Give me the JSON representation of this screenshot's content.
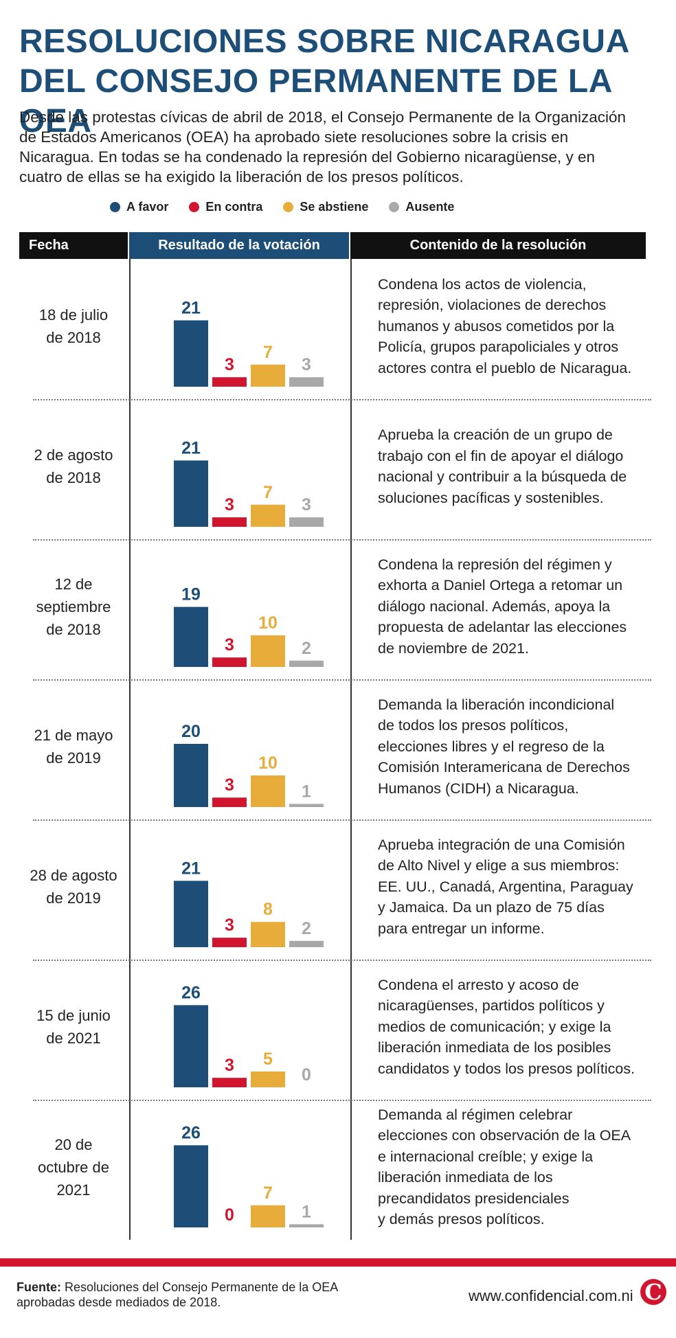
{
  "header": {
    "title_lines": [
      "RESOLUCIONES SOBRE NICARAGUA",
      "DEL CONSEJO PERMANENTE DE LA OEA"
    ],
    "intro_lines": [
      "Desde las protestas cívicas de abril de 2018, el Consejo Permanente de la Organización",
      "de Estados Americanos (OEA) ha aprobado siete resoluciones sobre la crisis en",
      "Nicaragua. En todas se ha condenado la represión del Gobierno nicaragüense, y en",
      "cuatro de ellas se ha exigido la liberación de los presos políticos."
    ]
  },
  "legend": [
    {
      "label": "A favor",
      "color": "#1c4e78"
    },
    {
      "label": "En contra",
      "color": "#d1152e"
    },
    {
      "label": "Se abstiene",
      "color": "#e8ac3a"
    },
    {
      "label": "Ausente",
      "color": "#a8a8a8"
    }
  ],
  "table_header": {
    "date": "Fecha",
    "vote": "Resultado de la votación",
    "content": "Contenido de la resolución"
  },
  "chart_data": {
    "type": "bar",
    "categories": [
      "A favor",
      "En contra",
      "Se abstiene",
      "Ausente"
    ],
    "colors": [
      "#1c4e78",
      "#d1152e",
      "#e8ac3a",
      "#a8a8a8"
    ],
    "resolutions": [
      {
        "date_lines": [
          "18 de julio",
          "de 2018"
        ],
        "values": [
          21,
          3,
          7,
          3
        ],
        "content_lines": [
          "Condena los actos de violencia,",
          "represión, violaciones de derechos",
          "humanos y abusos cometidos por la",
          "Policía, grupos parapoliciales y otros",
          "actores contra el pueblo de Nicaragua."
        ]
      },
      {
        "date_lines": [
          "2 de agosto",
          "de 2018"
        ],
        "values": [
          21,
          3,
          7,
          3
        ],
        "content_lines": [
          "Aprueba la creación de un grupo de",
          "trabajo con el fin de apoyar el diálogo",
          "nacional y contribuir a la búsqueda de",
          "soluciones pacíficas y sostenibles."
        ]
      },
      {
        "date_lines": [
          "12 de",
          "septiembre",
          "de 2018"
        ],
        "values": [
          19,
          3,
          10,
          2
        ],
        "content_lines": [
          "Condena la represión del régimen y",
          "exhorta a Daniel Ortega a retomar un",
          "diálogo nacional. Además, apoya la",
          "propuesta de adelantar las elecciones",
          "de noviembre de 2021."
        ]
      },
      {
        "date_lines": [
          "21 de mayo",
          "de 2019"
        ],
        "values": [
          20,
          3,
          10,
          1
        ],
        "content_lines": [
          "Demanda la liberación incondicional",
          "de todos los presos políticos,",
          "elecciones libres y el regreso de la",
          "Comisión Interamericana de Derechos",
          "Humanos (CIDH) a Nicaragua."
        ]
      },
      {
        "date_lines": [
          "28 de agosto",
          "de 2019"
        ],
        "values": [
          21,
          3,
          8,
          2
        ],
        "content_lines": [
          "Aprueba integración de una Comisión",
          "de Alto Nivel y elige a sus miembros:",
          "EE. UU., Canadá, Argentina, Paraguay",
          "y Jamaica. Da un plazo de 75 días",
          "para entregar un informe."
        ]
      },
      {
        "date_lines": [
          "15 de junio",
          "de 2021"
        ],
        "values": [
          26,
          3,
          5,
          0
        ],
        "content_lines": [
          "Condena el arresto y acoso de",
          "nicaragüenses, partidos políticos y",
          "medios de comunicación; y exige la",
          "liberación inmediata de los posibles",
          "candidatos y todos los presos políticos."
        ]
      },
      {
        "date_lines": [
          "20 de",
          "octubre de",
          "2021"
        ],
        "values": [
          26,
          0,
          7,
          1
        ],
        "content_lines": [
          "Demanda al régimen celebrar",
          "elecciones con observación de la OEA",
          "e internacional creíble; y exige la",
          "liberación inmediata de los",
          "precandidatos presidenciales",
          "y demás presos políticos."
        ]
      }
    ]
  },
  "footer": {
    "source_label": "Fuente:",
    "source_text": " Resoluciones del Consejo Permanente de la OEA aprobadas desde mediados de 2018.",
    "url": "www.confidencial.com.ni",
    "logo_letter": "C"
  }
}
